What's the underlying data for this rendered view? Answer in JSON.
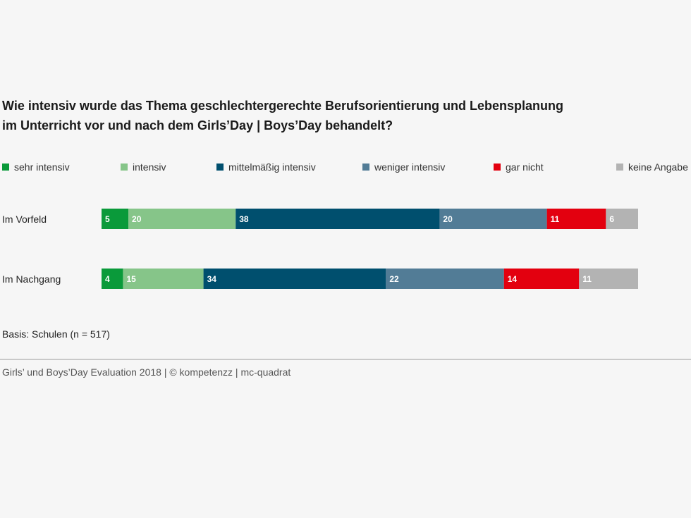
{
  "chart_data": {
    "type": "bar",
    "orientation": "horizontal",
    "stacked": true,
    "title_lines": [
      "Wie intensiv wurde das Thema geschlechtergerechte Berufsorientierung und Lebensplanung",
      "im Unterricht vor und nach dem Girls’Day | Boys’Day behandelt?"
    ],
    "categories": [
      "Im Vorfeld",
      "Im Nachgang"
    ],
    "series": [
      {
        "name": "sehr intensiv",
        "color": "#0a9a3a",
        "values": [
          5,
          4
        ]
      },
      {
        "name": "intensiv",
        "color": "#86c589",
        "values": [
          20,
          15
        ]
      },
      {
        "name": "mittelmäßig intensiv",
        "color": "#004f6e",
        "values": [
          38,
          34
        ]
      },
      {
        "name": "weniger intensiv",
        "color": "#527c96",
        "values": [
          20,
          22
        ]
      },
      {
        "name": "gar nicht",
        "color": "#e3000f",
        "values": [
          11,
          14
        ]
      },
      {
        "name": "keine Angabe",
        "color": "#b3b3b3",
        "values": [
          6,
          11
        ]
      }
    ],
    "xlim": [
      0,
      100
    ],
    "legend": "top",
    "grid": false,
    "note": "Basis: Schulen (n = 517)"
  },
  "footer": {
    "source": "Girls’ und Boys’Day Evaluation 2018 | © kompetenzz | mc-quadrat"
  }
}
